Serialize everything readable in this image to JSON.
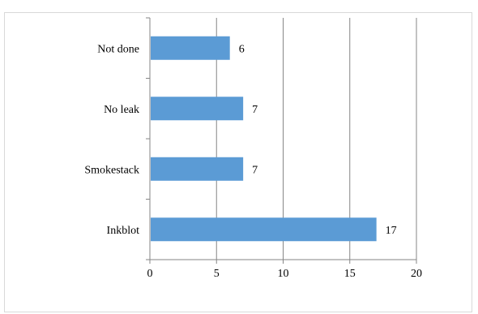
{
  "chart_data": {
    "type": "bar",
    "orientation": "horizontal",
    "title": "",
    "categories": [
      "Not done",
      "No leak",
      "Smokestack",
      "Inkblot"
    ],
    "values": [
      6,
      7,
      7,
      17
    ],
    "xlim": [
      0,
      20
    ],
    "ticks": [
      "0",
      "5",
      "10",
      "15",
      "20"
    ],
    "xlabel": "",
    "ylabel": "",
    "grid": "vertical",
    "legend": "none",
    "bar_color": "#5b9bd5",
    "grid_color": "#868686",
    "text_color": "#000000"
  }
}
